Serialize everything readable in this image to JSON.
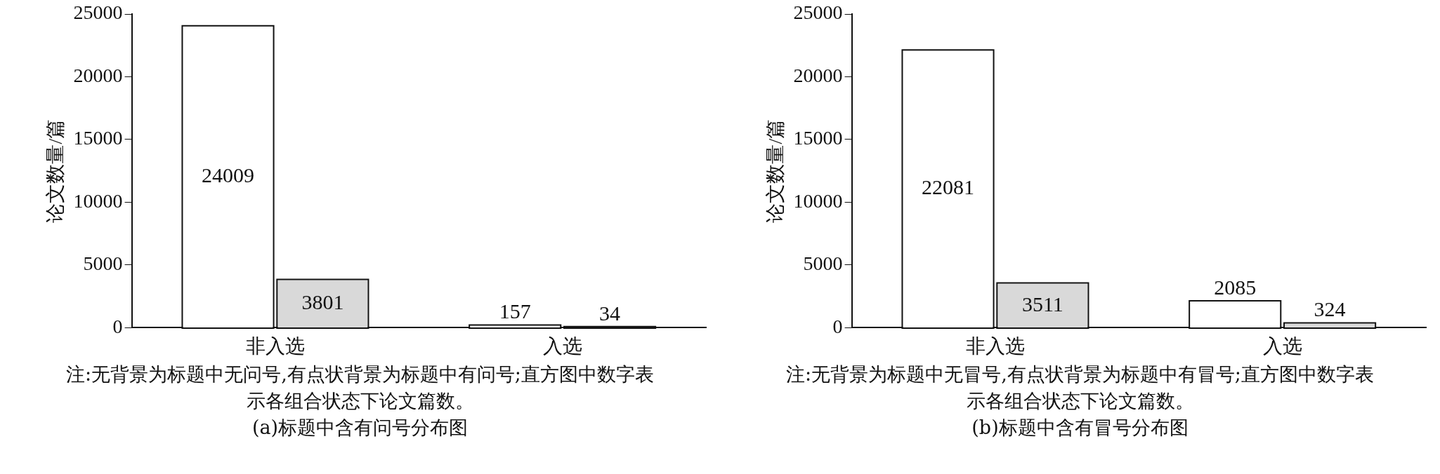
{
  "chart_data": [
    {
      "type": "bar",
      "title": "(a)标题中含有问号分布图",
      "ylabel": "论文数量/篇",
      "categories": [
        "非入选",
        "入选"
      ],
      "series": [
        {
          "color": "#ffffff",
          "values": [
            24009,
            157
          ]
        },
        {
          "color": "#d9d9d9",
          "values": [
            3801,
            34
          ]
        }
      ],
      "ylim": [
        0,
        25000
      ],
      "yticks": [
        0,
        5000,
        10000,
        15000,
        20000,
        25000
      ],
      "grid": false,
      "legend": false,
      "data_labels": true,
      "annotations": [
        "注:无背景为标题中无问号,有点状背景为标题中有问号;直方图中数字表示各组合状态下论文篇数。"
      ]
    },
    {
      "type": "bar",
      "title": "(b)标题中含有冒号分布图",
      "ylabel": "论文数量/篇",
      "categories": [
        "非入选",
        "入选"
      ],
      "series": [
        {
          "color": "#ffffff",
          "values": [
            22081,
            2085
          ]
        },
        {
          "color": "#d9d9d9",
          "values": [
            3511,
            324
          ]
        }
      ],
      "ylim": [
        0,
        25000
      ],
      "yticks": [
        0,
        5000,
        10000,
        15000,
        20000,
        25000
      ],
      "grid": false,
      "legend": false,
      "data_labels": true,
      "annotations": [
        "注:无背景为标题中无冒号,有点状背景为标题中有冒号;直方图中数字表示各组合状态下论文篇数。"
      ]
    }
  ]
}
